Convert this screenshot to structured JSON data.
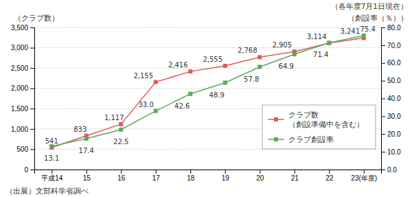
{
  "chart_data": {
    "type": "line",
    "ylabel": "（クラブ数）",
    "y2label": "（創設率（％））",
    "subtitle": "（各年度7月1日現在）",
    "annotations": [
      "（出展）文部科学省調べ"
    ],
    "categories": [
      "平成14",
      "15",
      "16",
      "17",
      "18",
      "19",
      "20",
      "21",
      "22",
      "23(年度)"
    ],
    "series": [
      {
        "name": "クラブ数\n（創設準備中を含む）",
        "color": "#e05a5a",
        "marker": "square",
        "values": [
          541,
          833,
          1117,
          2155,
          2416,
          2555,
          2768,
          2905,
          3114,
          3241
        ],
        "value_labels": [
          "541",
          "833",
          "1,117",
          "2,155",
          "2,416",
          "2,555",
          "2,768",
          "2,905",
          "3,114",
          "3,241"
        ]
      },
      {
        "name": "クラブ創設率",
        "color": "#5aaa5a",
        "marker": "square",
        "axis": "y2",
        "values": [
          13.1,
          17.4,
          22.5,
          33.0,
          42.6,
          48.9,
          57.8,
          64.9,
          71.4,
          75.4
        ],
        "value_labels": [
          "13.1",
          "17.4",
          "22.5",
          "33.0",
          "42.6",
          "48.9",
          "57.8",
          "64.9",
          "71.4",
          "75.4"
        ]
      }
    ],
    "ylim": [
      0,
      3500
    ],
    "yticks": [
      0,
      500,
      {
        "value": 1000,
        "label": "1,000"
      },
      {
        "value": 1500,
        "label": "1,500"
      },
      {
        "value": 2000,
        "label": "2,000"
      },
      {
        "value": 2500,
        "label": "2,500"
      },
      {
        "value": 3000,
        "label": "3,000"
      },
      {
        "value": 3500,
        "label": "3,500"
      }
    ],
    "y2lim": [
      0.0,
      80.0
    ],
    "y2ticks": [
      {
        "value": 0,
        "label": "0.0"
      },
      {
        "value": 10,
        "label": "10.0"
      },
      {
        "value": 20,
        "label": "20.0"
      },
      {
        "value": 30,
        "label": "30.0"
      },
      {
        "value": 40,
        "label": "40.0"
      },
      {
        "value": 50,
        "label": "50.0"
      },
      {
        "value": 60,
        "label": "60.0"
      },
      {
        "value": 70,
        "label": "70.0"
      },
      {
        "value": 80,
        "label": "80.0"
      }
    ],
    "grid": true,
    "data_labels": true,
    "legend": "lower right"
  }
}
